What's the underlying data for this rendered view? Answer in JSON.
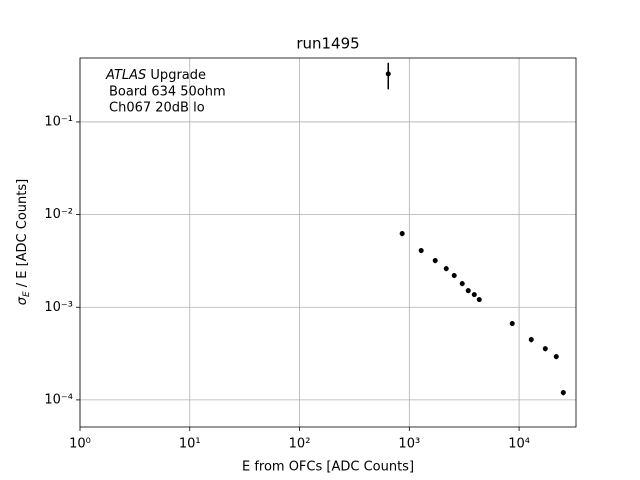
{
  "chart_data": {
    "type": "errorbar",
    "title": "run1495",
    "xlabel": "E from OFCs [ADC Counts]",
    "ylabel": {
      "symbol": "σ",
      "sub": "E",
      "text": "/ E [ADC Counts]"
    },
    "annotation_italic": "ATLAS",
    "annotation": [
      "Upgrade",
      "Board 634 50ohm",
      "Ch067 20dB lo"
    ],
    "xscale": "log",
    "yscale": "log",
    "grid": true,
    "xlim": [
      1,
      33000
    ],
    "ylim": [
      5.1e-05,
      0.49
    ],
    "xticks": [
      {
        "value": 1,
        "label": "10⁰"
      },
      {
        "value": 10,
        "label": "10¹"
      },
      {
        "value": 100,
        "label": "10²"
      },
      {
        "value": 1000,
        "label": "10³"
      },
      {
        "value": 10000,
        "label": "10⁴"
      }
    ],
    "yticks": [
      {
        "value": 0.0001,
        "label": "10⁻⁴"
      },
      {
        "value": 0.001,
        "label": "10⁻³"
      },
      {
        "value": 0.01,
        "label": "10⁻²"
      },
      {
        "value": 0.1,
        "label": "10⁻¹"
      }
    ],
    "series": [
      {
        "color": "#000000",
        "x": [
          643,
          861,
          1283,
          1722,
          2170,
          2565,
          3035,
          3443,
          3908,
          4337,
          8666,
          12910,
          17330,
          21820,
          25290
        ],
        "values": [
          0.33,
          0.00624,
          0.00409,
          0.00319,
          0.00261,
          0.0022,
          0.0018,
          0.00151,
          0.00137,
          0.00121,
          0.000667,
          0.000448,
          0.000357,
          0.000293,
          0.00012
        ],
        "errors": [
          0.105,
          0.0004,
          0.00025,
          0.0002,
          0.00016,
          0.00013,
          0.00011,
          9e-05,
          8e-05,
          7e-05,
          4e-05,
          3e-05,
          2.2e-05,
          1.8e-05,
          8e-06
        ]
      }
    ]
  }
}
